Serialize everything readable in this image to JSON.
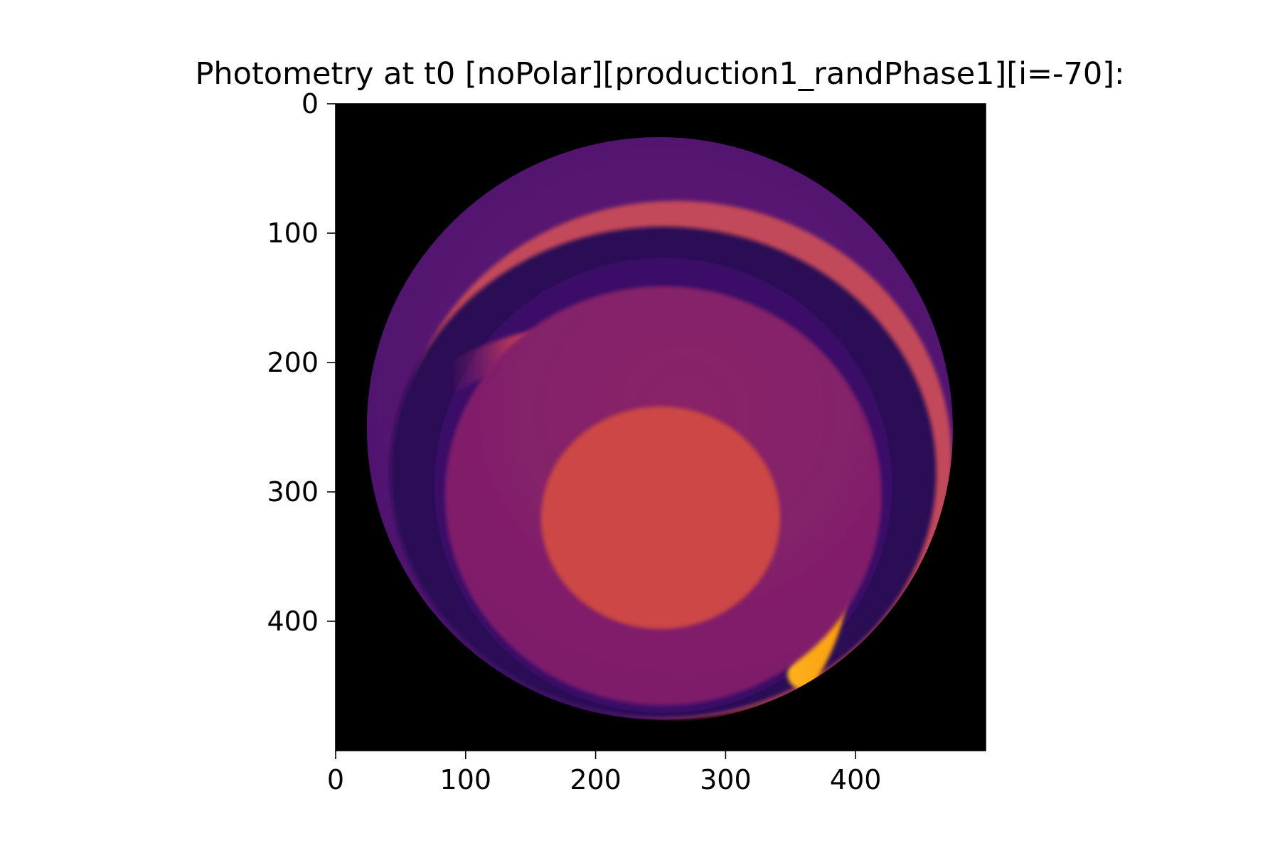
{
  "chart_data": {
    "type": "heatmap",
    "title": "Photometry at t0 [noPolar][production1_randPhase1][i=-70]:",
    "xlabel": "",
    "ylabel": "",
    "xlim": [
      0,
      500
    ],
    "ylim": [
      500,
      0
    ],
    "y_axis_inverted": true,
    "x_ticks": [
      "0",
      "100",
      "200",
      "300",
      "400"
    ],
    "y_ticks": [
      "0",
      "100",
      "200",
      "300",
      "400"
    ],
    "colormap": "inferno",
    "background_color": "#000000",
    "colorbar": false,
    "grid": false,
    "features": [
      {
        "feature": "stellar-disk",
        "shape": "ellipse",
        "cx": 250,
        "cy": 250,
        "rx": 226,
        "ry": 226,
        "level": 0.32,
        "color": "#5c1871"
      },
      {
        "feature": "outer-dark-ring",
        "shape": "ellipse",
        "cx": 252,
        "cy": 285,
        "rx": 210,
        "ry": 190,
        "level": 0.15,
        "color": "#2c0c55"
      },
      {
        "feature": "lower-right-bright-crescent",
        "shape": "crescent",
        "cx": 262,
        "cy": 275,
        "rx": 212,
        "ry": 200,
        "level": 0.62,
        "color": "#c24a5a"
      },
      {
        "feature": "inner-disk",
        "shape": "ellipse",
        "cx": 252,
        "cy": 295,
        "rx": 176,
        "ry": 176,
        "level": 0.2,
        "color": "#3b0e68"
      },
      {
        "feature": "bright-arc",
        "shape": "arc",
        "cx": 250,
        "cy": 300,
        "rx": 190,
        "ry": 172,
        "level": 0.92,
        "color": "#fcb416"
      },
      {
        "feature": "central-region",
        "shape": "ellipse",
        "cx": 252,
        "cy": 303,
        "rx": 168,
        "ry": 162,
        "level": 0.38,
        "color": "#852069"
      },
      {
        "feature": "central-spot",
        "shape": "ellipse",
        "cx": 250,
        "cy": 320,
        "rx": 92,
        "ry": 86,
        "level": 0.58,
        "color": "#cc4644"
      }
    ]
  }
}
